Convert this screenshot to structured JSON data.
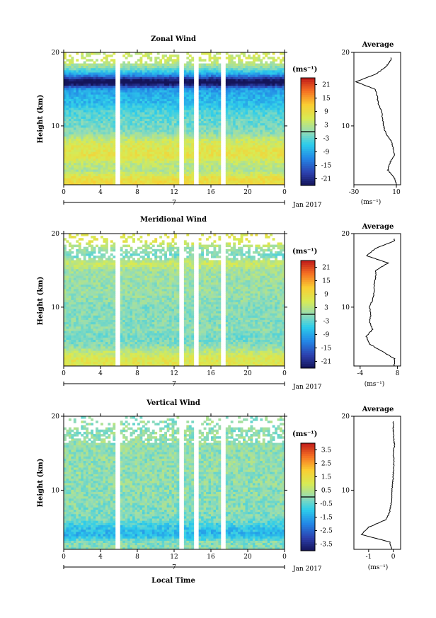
{
  "figure": {
    "x_axis_label": "Local Time",
    "date_label": "Jan 2017"
  },
  "panels": [
    {
      "key": "zonal",
      "title": "Zonal Wind",
      "y_label": "Height (km)",
      "unit_label": "(ms⁻¹)",
      "colorbar_ticks": [
        "21",
        "15",
        "9",
        "3",
        "-3",
        "-9",
        "-15",
        "-21"
      ],
      "profile_title": "Average",
      "profile_xlabel": "(ms⁻¹)",
      "profile_xticks": [
        "-30",
        "10"
      ]
    },
    {
      "key": "meridional",
      "title": "Meridional Wind",
      "y_label": "Height (km)",
      "unit_label": "(ms⁻¹)",
      "colorbar_ticks": [
        "21",
        "15",
        "9",
        "3",
        "-3",
        "-9",
        "-15",
        "-21"
      ],
      "profile_title": "Average",
      "profile_xlabel": "(ms⁻¹)",
      "profile_xticks": [
        "-4",
        "8"
      ]
    },
    {
      "key": "vertical",
      "title": "Vertical Wind",
      "y_label": "Height (km)",
      "unit_label": "(ms⁻¹)",
      "colorbar_ticks": [
        "3.5",
        "2.5",
        "1.5",
        "0.5",
        "-0.5",
        "-1.5",
        "-2.5",
        "-3.5"
      ],
      "profile_title": "Average",
      "profile_xlabel": "(ms⁻¹)",
      "profile_xticks": [
        "-1",
        "0"
      ]
    }
  ],
  "chart_data": [
    {
      "type": "heatmap",
      "title": "Zonal Wind",
      "ylabel": "Height (km)",
      "xlabel": "Local Time",
      "x_ticks": [
        "0",
        "4",
        "8",
        "12",
        "16",
        "20",
        "0"
      ],
      "x_range_hours": [
        0,
        24
      ],
      "date_marker": "7",
      "date_label": "Jan 2017",
      "y_ticks": [
        20,
        10
      ],
      "ylim": [
        2,
        20
      ],
      "color_range": [
        -24,
        24
      ],
      "colorbar_ticks": [
        21,
        15,
        9,
        3,
        -3,
        -9,
        -15,
        -21
      ],
      "profile_height_km": [
        2,
        3,
        4,
        5,
        6,
        7,
        8,
        9,
        10,
        11,
        12,
        13,
        14,
        15,
        16,
        17,
        18,
        19
      ],
      "mean_profile_ms": [
        10,
        8,
        2,
        4,
        8,
        7,
        5,
        0,
        -2,
        -3,
        -4,
        -7,
        -8,
        -10,
        -28,
        -10,
        0,
        5
      ],
      "profile_xlim": [
        -30,
        14
      ],
      "profile_title": "Average"
    },
    {
      "type": "heatmap",
      "title": "Meridional Wind",
      "ylabel": "Height (km)",
      "xlabel": "Local Time",
      "x_ticks": [
        "0",
        "4",
        "8",
        "12",
        "16",
        "20",
        "0"
      ],
      "x_range_hours": [
        0,
        24
      ],
      "date_marker": "7",
      "date_label": "Jan 2017",
      "y_ticks": [
        20,
        10
      ],
      "ylim": [
        2,
        20
      ],
      "color_range": [
        -24,
        24
      ],
      "colorbar_ticks": [
        21,
        15,
        9,
        3,
        -3,
        -9,
        -15,
        -21
      ],
      "profile_height_km": [
        2,
        3,
        4,
        5,
        6,
        7,
        8,
        9,
        10,
        11,
        12,
        13,
        14,
        15,
        16,
        17,
        18,
        19
      ],
      "mean_profile_ms": [
        7,
        7,
        3,
        -1,
        -2,
        0,
        -1,
        -0.5,
        -1,
        0,
        0.5,
        0.5,
        1,
        1,
        5,
        -2,
        1,
        7
      ],
      "profile_xlim": [
        -6,
        9
      ],
      "profile_title": "Average"
    },
    {
      "type": "heatmap",
      "title": "Vertical Wind",
      "ylabel": "Height (km)",
      "xlabel": "Local Time",
      "x_ticks": [
        "0",
        "4",
        "8",
        "12",
        "16",
        "20",
        "0"
      ],
      "x_range_hours": [
        0,
        24
      ],
      "date_marker": "7",
      "date_label": "Jan 2017",
      "y_ticks": [
        20,
        10
      ],
      "ylim": [
        2,
        20
      ],
      "color_range": [
        -4,
        4
      ],
      "colorbar_ticks": [
        3.5,
        2.5,
        1.5,
        0.5,
        -0.5,
        -1.5,
        -2.5,
        -3.5
      ],
      "profile_height_km": [
        2,
        3,
        4,
        5,
        6,
        7,
        8,
        9,
        10,
        11,
        12,
        13,
        14,
        15,
        16,
        17,
        18,
        19
      ],
      "mean_profile_ms": [
        -0.05,
        -0.15,
        -1.3,
        -1.0,
        -0.3,
        -0.15,
        -0.1,
        -0.05,
        -0.05,
        -0.02,
        0.0,
        0.02,
        0.03,
        0.0,
        0.05,
        0.02,
        0.0,
        0.0
      ],
      "profile_xlim": [
        -1.6,
        0.3
      ],
      "profile_title": "Average"
    }
  ]
}
